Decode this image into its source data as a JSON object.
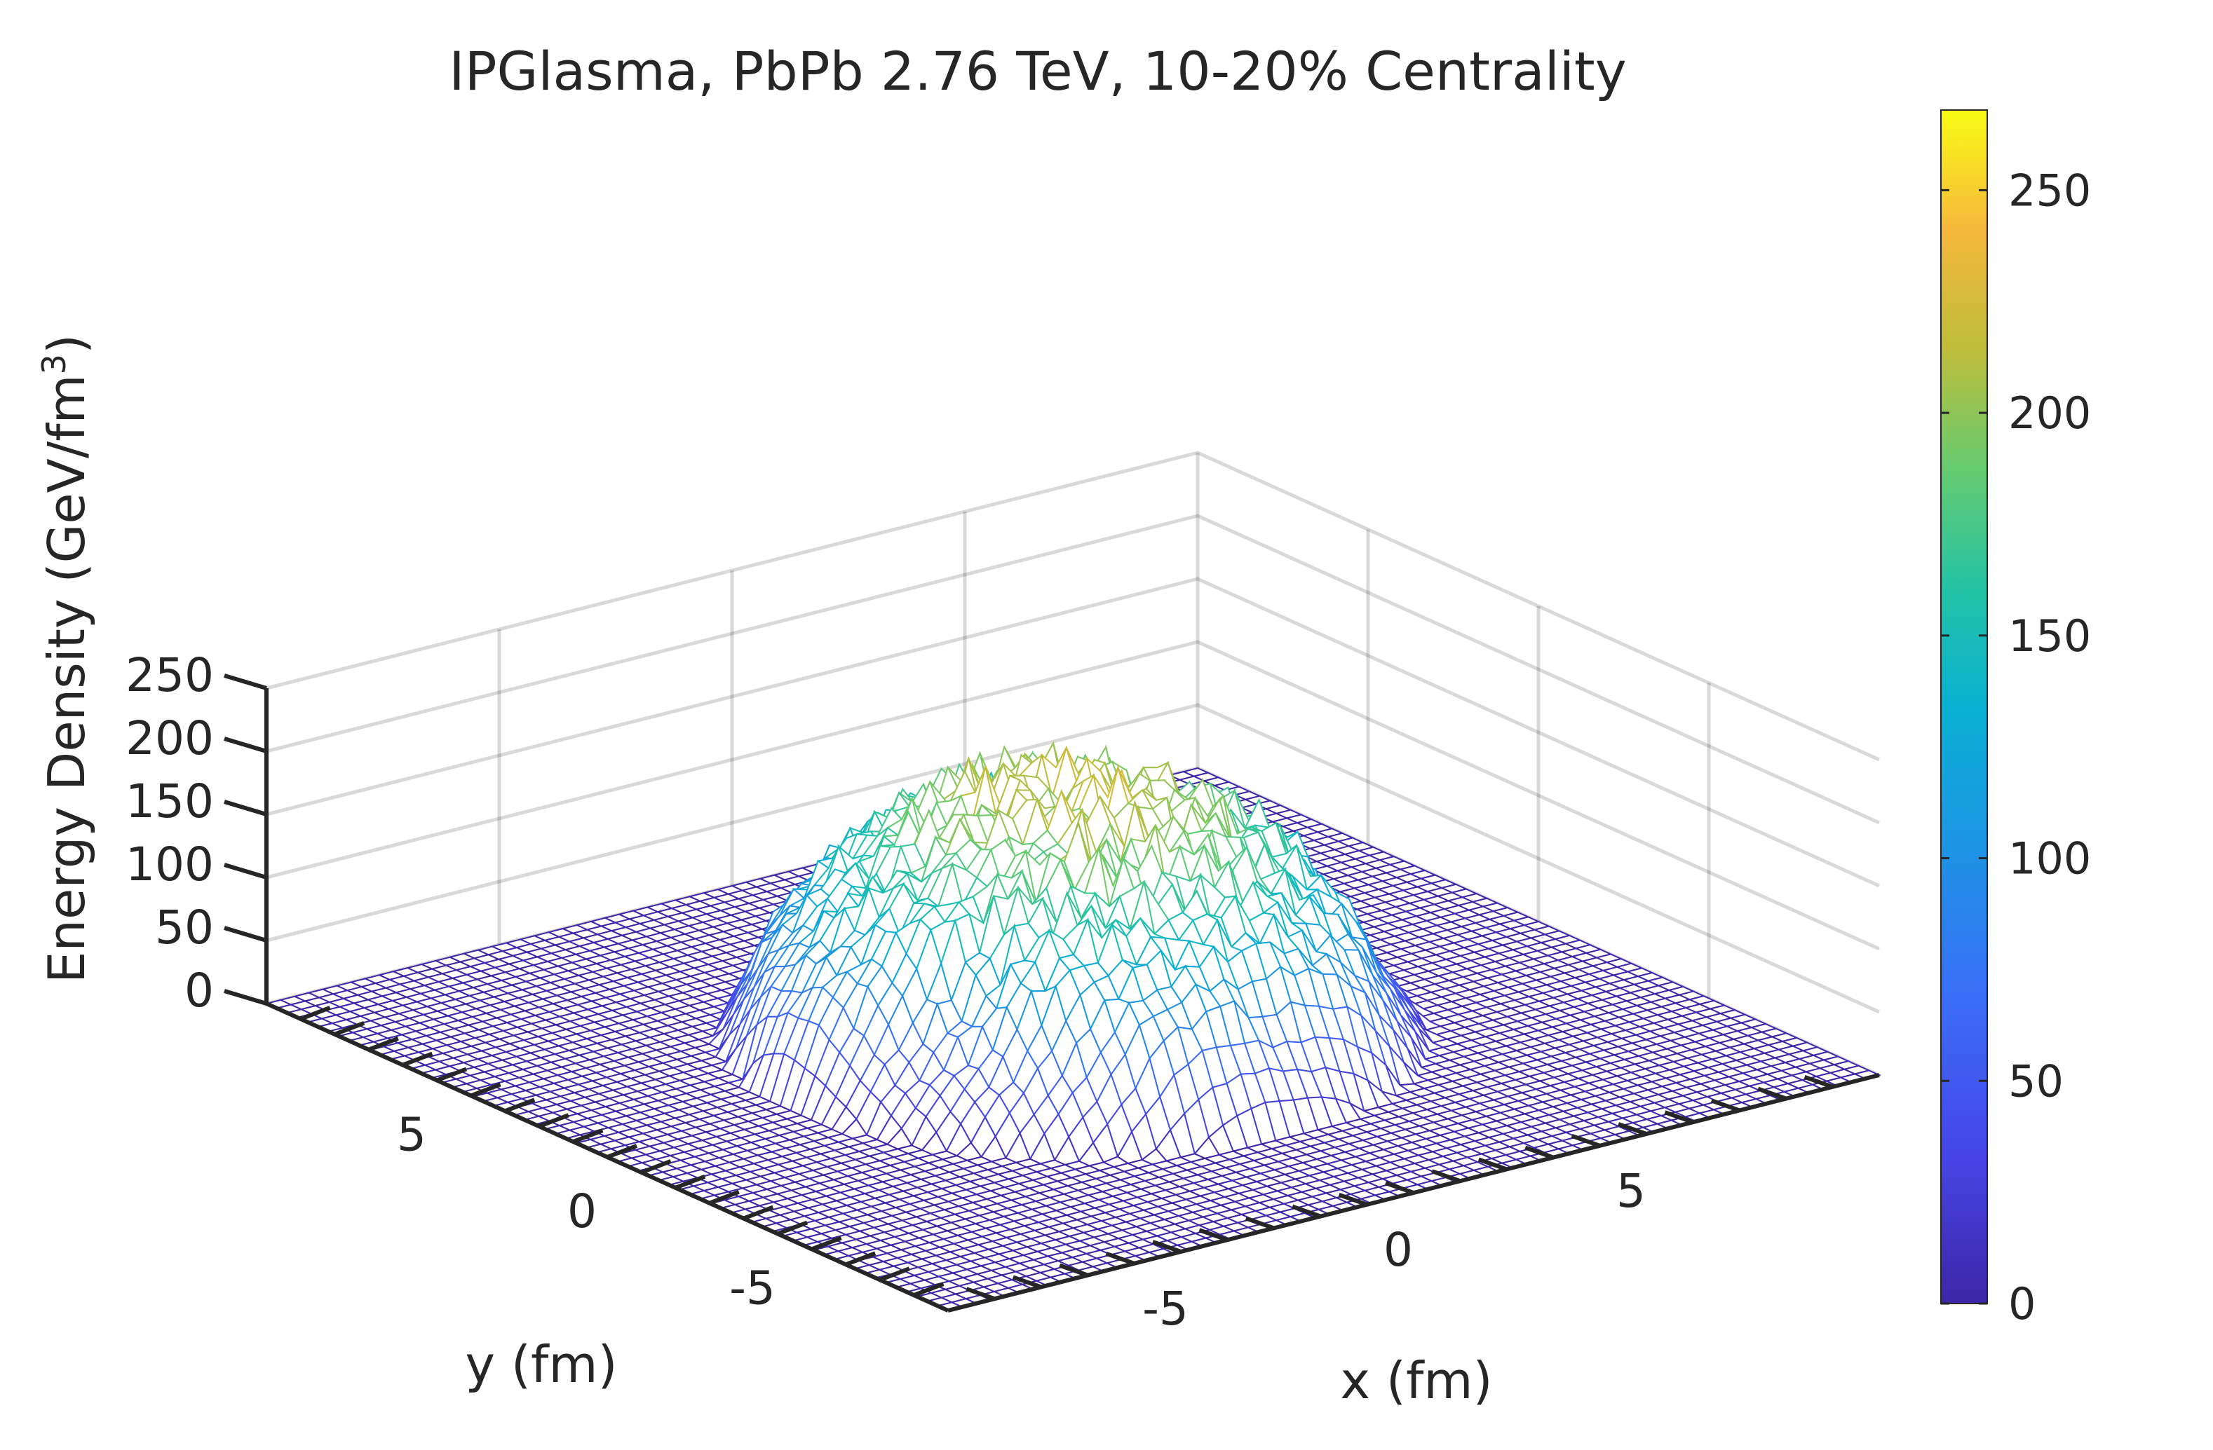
{
  "chart_data": {
    "type": "surface",
    "title": "IPGlasma, PbPb 2.76 TeV, 10-20% Centrality",
    "xlabel": "x (fm)",
    "ylabel": "y (fm)",
    "zlabel_main": "Energy Density (GeV/fm",
    "zlabel_sup": "3",
    "zlabel_close": ")",
    "xlim": [
      -10,
      10
    ],
    "ylim": [
      -10,
      10
    ],
    "zlim": [
      0,
      250
    ],
    "x_ticks": [
      -5,
      0,
      5
    ],
    "y_ticks": [
      -5,
      0,
      5
    ],
    "z_ticks": [
      0,
      50,
      100,
      150,
      200,
      250
    ],
    "x_tick_labels": [
      "-5",
      "0",
      "5"
    ],
    "y_tick_labels": [
      "-5",
      "0",
      "5"
    ],
    "z_tick_labels": [
      "0",
      "50",
      "100",
      "150",
      "200",
      "250"
    ],
    "grid": true,
    "colormap": "parula",
    "colorbar": {
      "limits": [
        0,
        268
      ],
      "ticks": [
        0,
        50,
        100,
        150,
        200,
        250
      ],
      "tick_labels": [
        "0",
        "50",
        "100",
        "150",
        "200",
        "250"
      ],
      "placement": "right"
    },
    "peak_value": 250,
    "profile": "fluctuating energy density concentrated within radius ~6 fm of the origin, near zero outside",
    "colors": {
      "low": "#3e26a8",
      "mid_low": "#2c7ef6",
      "mid": "#12bebf",
      "mid_high": "#7fcd5a",
      "high": "#f9b536",
      "top": "#f9fb15"
    }
  }
}
